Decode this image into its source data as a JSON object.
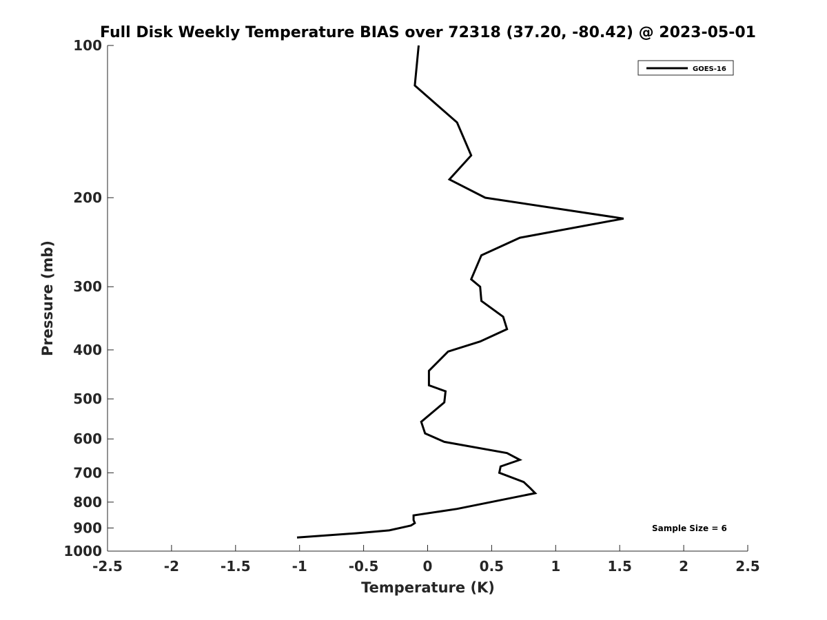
{
  "chart_data": {
    "type": "line",
    "title": "Full Disk Weekly Temperature BIAS over 72318 (37.20, -80.42) @ 2023-05-01",
    "xlabel": "Temperature (K)",
    "ylabel": "Pressure (mb)",
    "xlim": [
      -2.5,
      2.5
    ],
    "ylim": [
      100,
      1000
    ],
    "y_scale": "log",
    "y_reversed": true,
    "x_ticks": [
      -2.5,
      -2,
      -1.5,
      -1,
      -0.5,
      0,
      0.5,
      1,
      1.5,
      2,
      2.5
    ],
    "x_tick_labels": [
      "-2.5",
      "-2",
      "-1.5",
      "-1",
      "-0.5",
      "0",
      "0.5",
      "1",
      "1.5",
      "2",
      "2.5"
    ],
    "y_ticks": [
      100,
      200,
      300,
      400,
      500,
      600,
      700,
      800,
      900,
      1000
    ],
    "y_tick_labels": [
      "100",
      "200",
      "300",
      "400",
      "500",
      "600",
      "700",
      "800",
      "900",
      "1000"
    ],
    "grid": false,
    "legend": {
      "placement": "top-right",
      "entries": [
        "GOES-16"
      ]
    },
    "annotations": [
      "Sample Size = 6"
    ],
    "series": [
      {
        "name": "GOES-16",
        "color": "#000000",
        "points": [
          {
            "x": -0.07,
            "y": 100
          },
          {
            "x": -0.1,
            "y": 120
          },
          {
            "x": 0.23,
            "y": 142
          },
          {
            "x": 0.34,
            "y": 165
          },
          {
            "x": 0.17,
            "y": 184
          },
          {
            "x": 0.45,
            "y": 200
          },
          {
            "x": 1.53,
            "y": 220
          },
          {
            "x": 0.72,
            "y": 240
          },
          {
            "x": 0.42,
            "y": 260
          },
          {
            "x": 0.34,
            "y": 290
          },
          {
            "x": 0.41,
            "y": 300
          },
          {
            "x": 0.42,
            "y": 320
          },
          {
            "x": 0.59,
            "y": 344
          },
          {
            "x": 0.62,
            "y": 364
          },
          {
            "x": 0.41,
            "y": 385
          },
          {
            "x": 0.16,
            "y": 403
          },
          {
            "x": 0.01,
            "y": 440
          },
          {
            "x": 0.01,
            "y": 470
          },
          {
            "x": 0.14,
            "y": 483
          },
          {
            "x": 0.13,
            "y": 508
          },
          {
            "x": -0.05,
            "y": 555
          },
          {
            "x": -0.02,
            "y": 585
          },
          {
            "x": 0.13,
            "y": 608
          },
          {
            "x": 0.62,
            "y": 640
          },
          {
            "x": 0.72,
            "y": 660
          },
          {
            "x": 0.57,
            "y": 680
          },
          {
            "x": 0.56,
            "y": 700
          },
          {
            "x": 0.75,
            "y": 730
          },
          {
            "x": 0.8,
            "y": 750
          },
          {
            "x": 0.84,
            "y": 768
          },
          {
            "x": 0.23,
            "y": 825
          },
          {
            "x": -0.11,
            "y": 850
          },
          {
            "x": -0.11,
            "y": 868
          },
          {
            "x": -0.1,
            "y": 880
          },
          {
            "x": -0.13,
            "y": 890
          },
          {
            "x": -0.3,
            "y": 910
          },
          {
            "x": -0.56,
            "y": 922
          },
          {
            "x": -1.02,
            "y": 940
          }
        ]
      }
    ]
  }
}
